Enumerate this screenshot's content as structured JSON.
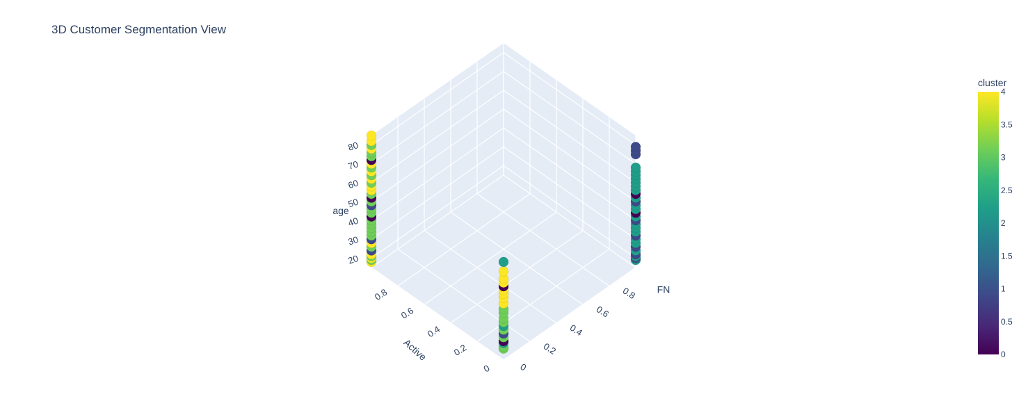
{
  "chart_data": {
    "type": "scatter",
    "subtype": "3d",
    "title": "3D Customer Segmentation View",
    "axes": {
      "x": {
        "title": "FN",
        "ticks": [
          "0",
          "0.2",
          "0.4",
          "0.6",
          "0.8"
        ],
        "range": [
          0,
          1
        ]
      },
      "y": {
        "title": "Active",
        "ticks": [
          "0",
          "0.2",
          "0.4",
          "0.6",
          "0.8"
        ],
        "range": [
          0,
          1
        ]
      },
      "z": {
        "title": "age",
        "ticks": [
          "20",
          "30",
          "40",
          "50",
          "60",
          "70",
          "80"
        ],
        "range": [
          15,
          85
        ]
      }
    },
    "colorbar": {
      "title": "cluster",
      "colorscale": "Viridis",
      "range": [
        0,
        4
      ],
      "ticks": [
        "0",
        "0.5",
        "1",
        "1.5",
        "2",
        "2.5",
        "3",
        "3.5",
        "4"
      ]
    },
    "grid": true,
    "background_color": "#e5ecf6",
    "groups": [
      {
        "FN": 0,
        "Active": 0,
        "points": [
          {
            "age": 21,
            "cluster": 3
          },
          {
            "age": 22,
            "cluster": 3
          },
          {
            "age": 24,
            "cluster": 2
          },
          {
            "age": 25,
            "cluster": 0
          },
          {
            "age": 27,
            "cluster": 3
          },
          {
            "age": 29,
            "cluster": 1
          },
          {
            "age": 31,
            "cluster": 3
          },
          {
            "age": 33,
            "cluster": 2
          },
          {
            "age": 35,
            "cluster": 3
          },
          {
            "age": 37,
            "cluster": 3
          },
          {
            "age": 40,
            "cluster": 3
          },
          {
            "age": 42,
            "cluster": 3
          },
          {
            "age": 45,
            "cluster": 4
          },
          {
            "age": 48,
            "cluster": 4
          },
          {
            "age": 50,
            "cluster": 4
          },
          {
            "age": 52,
            "cluster": 4
          },
          {
            "age": 54,
            "cluster": 0
          },
          {
            "age": 56,
            "cluster": 4
          },
          {
            "age": 58,
            "cluster": 4
          },
          {
            "age": 62,
            "cluster": 4
          },
          {
            "age": 67,
            "cluster": 2
          }
        ]
      },
      {
        "FN": 1,
        "Active": 0,
        "points": [
          {
            "age": 19,
            "cluster": 2
          },
          {
            "age": 20,
            "cluster": 1
          },
          {
            "age": 21,
            "cluster": 2
          },
          {
            "age": 22,
            "cluster": 1
          },
          {
            "age": 24,
            "cluster": 2
          },
          {
            "age": 26,
            "cluster": 1
          },
          {
            "age": 28,
            "cluster": 2
          },
          {
            "age": 30,
            "cluster": 2
          },
          {
            "age": 32,
            "cluster": 1
          },
          {
            "age": 34,
            "cluster": 2
          },
          {
            "age": 36,
            "cluster": 2
          },
          {
            "age": 38,
            "cluster": 2
          },
          {
            "age": 40,
            "cluster": 1
          },
          {
            "age": 42,
            "cluster": 2
          },
          {
            "age": 44,
            "cluster": 0
          },
          {
            "age": 46,
            "cluster": 2
          },
          {
            "age": 48,
            "cluster": 2
          },
          {
            "age": 50,
            "cluster": 1
          },
          {
            "age": 52,
            "cluster": 2
          },
          {
            "age": 54,
            "cluster": 0
          },
          {
            "age": 56,
            "cluster": 2
          },
          {
            "age": 58,
            "cluster": 2
          },
          {
            "age": 60,
            "cluster": 2
          },
          {
            "age": 62,
            "cluster": 2
          },
          {
            "age": 64,
            "cluster": 2
          },
          {
            "age": 66,
            "cluster": 2
          },
          {
            "age": 68,
            "cluster": 2
          },
          {
            "age": 75,
            "cluster": 1
          },
          {
            "age": 77,
            "cluster": 1
          },
          {
            "age": 79,
            "cluster": 1
          }
        ]
      },
      {
        "FN": 0,
        "Active": 1,
        "points": [
          {
            "age": 18,
            "cluster": 4
          },
          {
            "age": 19,
            "cluster": 3
          },
          {
            "age": 20,
            "cluster": 4
          },
          {
            "age": 21,
            "cluster": 3
          },
          {
            "age": 22,
            "cluster": 4
          },
          {
            "age": 24,
            "cluster": 1
          },
          {
            "age": 26,
            "cluster": 3
          },
          {
            "age": 28,
            "cluster": 4
          },
          {
            "age": 30,
            "cluster": 1
          },
          {
            "age": 32,
            "cluster": 3
          },
          {
            "age": 34,
            "cluster": 3
          },
          {
            "age": 36,
            "cluster": 3
          },
          {
            "age": 38,
            "cluster": 3
          },
          {
            "age": 40,
            "cluster": 3
          },
          {
            "age": 42,
            "cluster": 0
          },
          {
            "age": 44,
            "cluster": 3
          },
          {
            "age": 46,
            "cluster": 3
          },
          {
            "age": 48,
            "cluster": 1
          },
          {
            "age": 50,
            "cluster": 3
          },
          {
            "age": 52,
            "cluster": 0
          },
          {
            "age": 54,
            "cluster": 3
          },
          {
            "age": 56,
            "cluster": 4
          },
          {
            "age": 58,
            "cluster": 4
          },
          {
            "age": 60,
            "cluster": 3
          },
          {
            "age": 62,
            "cluster": 4
          },
          {
            "age": 64,
            "cluster": 3
          },
          {
            "age": 66,
            "cluster": 4
          },
          {
            "age": 68,
            "cluster": 3
          },
          {
            "age": 70,
            "cluster": 4
          },
          {
            "age": 72,
            "cluster": 0
          },
          {
            "age": 74,
            "cluster": 3
          },
          {
            "age": 76,
            "cluster": 3
          },
          {
            "age": 78,
            "cluster": 4
          },
          {
            "age": 80,
            "cluster": 3
          },
          {
            "age": 82,
            "cluster": 4
          },
          {
            "age": 85,
            "cluster": 4
          }
        ]
      }
    ]
  }
}
